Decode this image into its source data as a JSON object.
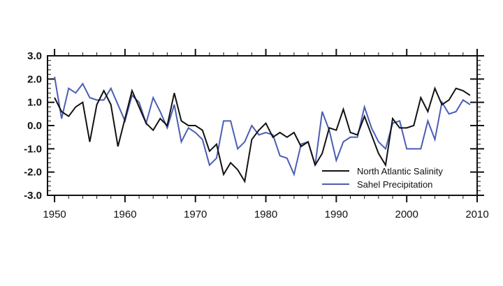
{
  "chart_data": {
    "type": "line",
    "title": "",
    "xlabel": "",
    "ylabel": "",
    "xlim": [
      1949,
      2010
    ],
    "ylim": [
      -3.0,
      3.0
    ],
    "grid": false,
    "legend_position": "bottom-right",
    "xticks": [
      "1950",
      "1960",
      "1970",
      "1980",
      "1990",
      "2000",
      "2010"
    ],
    "yticks": [
      "3.0",
      "2.0",
      "1.0",
      "0.0",
      "-1.0",
      "-2.0",
      "-3.0"
    ],
    "x": [
      1950,
      1951,
      1952,
      1953,
      1954,
      1955,
      1956,
      1957,
      1958,
      1959,
      1960,
      1961,
      1962,
      1963,
      1964,
      1965,
      1966,
      1967,
      1968,
      1969,
      1970,
      1971,
      1972,
      1973,
      1974,
      1975,
      1976,
      1977,
      1978,
      1979,
      1980,
      1981,
      1982,
      1983,
      1984,
      1985,
      1986,
      1987,
      1988,
      1989,
      1990,
      1991,
      1992,
      1993,
      1994,
      1995,
      1996,
      1997,
      1998,
      1999,
      2000,
      2001,
      2002,
      2003,
      2004,
      2005,
      2006,
      2007,
      2008,
      2009
    ],
    "series": [
      {
        "name": "North Atlantic Salinity",
        "color": "#111111",
        "values": [
          1.2,
          0.6,
          0.4,
          0.8,
          1.0,
          -0.7,
          0.9,
          1.5,
          0.9,
          -0.9,
          0.3,
          1.5,
          0.8,
          0.1,
          -0.2,
          0.3,
          0.0,
          1.4,
          0.2,
          0.0,
          0.0,
          -0.2,
          -1.1,
          -0.8,
          -2.1,
          -1.6,
          -1.9,
          -2.4,
          -0.6,
          -0.2,
          0.1,
          -0.5,
          -0.3,
          -0.5,
          -0.3,
          -0.9,
          -0.7,
          -1.7,
          -1.2,
          -0.1,
          -0.2,
          0.7,
          -0.3,
          -0.4,
          0.4,
          -0.4,
          -1.2,
          -1.7,
          0.3,
          -0.1,
          -0.1,
          0.0,
          1.2,
          0.6,
          1.6,
          0.9,
          1.1,
          1.6,
          1.5,
          1.3
        ]
      },
      {
        "name": "Sahel Precipitation",
        "color": "#4b5db3",
        "values": [
          2.1,
          0.3,
          1.6,
          1.4,
          1.8,
          1.2,
          1.1,
          1.1,
          1.6,
          0.9,
          0.2,
          1.3,
          1.0,
          0.1,
          1.2,
          0.6,
          -0.1,
          0.9,
          -0.7,
          -0.1,
          -0.3,
          -0.6,
          -1.7,
          -1.4,
          0.2,
          0.2,
          -1.0,
          -0.7,
          0.0,
          -0.4,
          -0.3,
          -0.4,
          -1.3,
          -1.4,
          -2.1,
          -0.8,
          -0.7,
          -1.7,
          0.6,
          -0.2,
          -1.5,
          -0.7,
          -0.5,
          -0.5,
          0.8,
          -0.1,
          -0.7,
          -1.0,
          0.1,
          0.2,
          -1.0,
          -1.0,
          -1.0,
          0.2,
          -0.6,
          1.0,
          0.5,
          0.6,
          1.1,
          0.9
        ]
      }
    ]
  }
}
